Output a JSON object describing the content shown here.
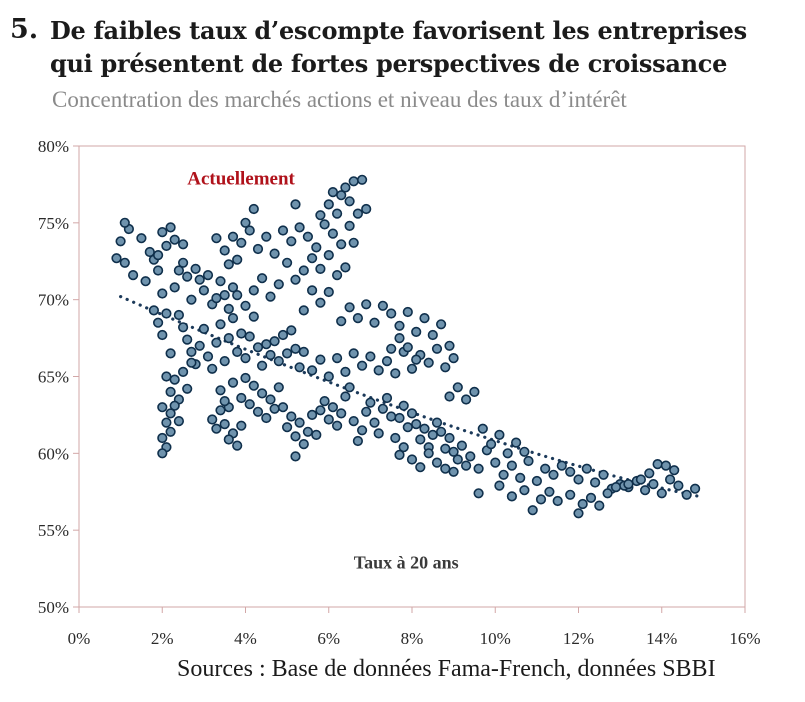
{
  "header": {
    "number": "5.",
    "title": "De faibles taux d’escompte favorisent les entreprises qui présentent de fortes perspectives de croissance",
    "subtitle": "Concentration des marchés actions et niveau des taux d’intérêt"
  },
  "footer": {
    "sources": "Sources : Base de données Fama-French, données SBBI"
  },
  "chart_data": {
    "type": "scatter",
    "title": "De faibles taux d’escompte favorisent les entreprises qui présentent de fortes perspectives de croissance",
    "subtitle": "Concentration des marchés actions et niveau des taux d’intérêt",
    "xlabel": "",
    "ylabel": "",
    "xlim": [
      0,
      16
    ],
    "ylim": [
      50,
      80
    ],
    "x_ticks": [
      "0%",
      "2%",
      "4%",
      "6%",
      "8%",
      "10%",
      "12%",
      "14%",
      "16%"
    ],
    "y_ticks": [
      "50%",
      "55%",
      "60%",
      "65%",
      "70%",
      "75%",
      "80%"
    ],
    "grid": false,
    "annotations": [
      {
        "text": "Actuellement",
        "color": "#b0121b",
        "x": 2.6,
        "y": 77.5
      },
      {
        "text": "Taux à 20 ans",
        "color": "#3a3a3a",
        "x": 6.6,
        "y": 52.5
      }
    ],
    "colors": {
      "marker_fill": "#6f93ad",
      "marker_edge": "#0f2f4b",
      "trend": "#1c3a5a",
      "frame": "#d2a7a7"
    },
    "trendline": {
      "x": [
        1.0,
        14.9
      ],
      "y": [
        70.2,
        57.2
      ],
      "style": "dotted"
    },
    "series": [
      {
        "name": "",
        "points": [
          [
            0.9,
            72.7
          ],
          [
            1.1,
            72.4
          ],
          [
            1.0,
            73.8
          ],
          [
            1.2,
            74.6
          ],
          [
            1.1,
            75.0
          ],
          [
            1.3,
            71.6
          ],
          [
            1.5,
            74.0
          ],
          [
            1.6,
            71.2
          ],
          [
            1.7,
            73.1
          ],
          [
            1.8,
            72.6
          ],
          [
            1.9,
            71.9
          ],
          [
            2.0,
            74.4
          ],
          [
            1.9,
            72.9
          ],
          [
            2.1,
            73.5
          ],
          [
            2.2,
            74.7
          ],
          [
            2.3,
            73.9
          ],
          [
            2.5,
            73.6
          ],
          [
            2.0,
            70.4
          ],
          [
            2.1,
            69.1
          ],
          [
            1.8,
            69.3
          ],
          [
            1.9,
            68.5
          ],
          [
            2.0,
            67.7
          ],
          [
            2.2,
            66.5
          ],
          [
            2.3,
            70.8
          ],
          [
            2.4,
            71.9
          ],
          [
            2.5,
            72.4
          ],
          [
            2.6,
            71.5
          ],
          [
            2.7,
            70.0
          ],
          [
            2.8,
            72.0
          ],
          [
            2.9,
            71.3
          ],
          [
            3.0,
            70.6
          ],
          [
            3.1,
            71.6
          ],
          [
            3.2,
            69.7
          ],
          [
            3.3,
            70.1
          ],
          [
            3.4,
            71.2
          ],
          [
            3.5,
            70.3
          ],
          [
            3.6,
            69.4
          ],
          [
            3.7,
            70.8
          ],
          [
            2.4,
            69.0
          ],
          [
            2.5,
            68.2
          ],
          [
            2.6,
            67.4
          ],
          [
            2.7,
            66.6
          ],
          [
            2.8,
            65.8
          ],
          [
            2.9,
            67.0
          ],
          [
            3.0,
            68.1
          ],
          [
            3.1,
            66.3
          ],
          [
            3.2,
            65.5
          ],
          [
            3.3,
            67.2
          ],
          [
            3.4,
            68.4
          ],
          [
            3.5,
            66.0
          ],
          [
            3.6,
            67.5
          ],
          [
            3.7,
            68.8
          ],
          [
            3.8,
            66.6
          ],
          [
            3.9,
            67.8
          ],
          [
            4.0,
            66.2
          ],
          [
            4.1,
            67.6
          ],
          [
            4.2,
            68.9
          ],
          [
            4.3,
            66.9
          ],
          [
            4.4,
            65.7
          ],
          [
            4.5,
            67.1
          ],
          [
            4.6,
            66.4
          ],
          [
            4.7,
            67.3
          ],
          [
            4.8,
            66.0
          ],
          [
            4.9,
            67.7
          ],
          [
            5.0,
            66.5
          ],
          [
            5.1,
            68.0
          ],
          [
            5.2,
            66.8
          ],
          [
            5.3,
            65.6
          ],
          [
            2.1,
            65.0
          ],
          [
            2.2,
            64.0
          ],
          [
            2.0,
            63.0
          ],
          [
            2.1,
            62.0
          ],
          [
            2.0,
            61.0
          ],
          [
            2.1,
            60.4
          ],
          [
            2.2,
            62.6
          ],
          [
            2.3,
            64.8
          ],
          [
            2.4,
            63.5
          ],
          [
            2.5,
            65.3
          ],
          [
            2.6,
            64.2
          ],
          [
            2.7,
            65.9
          ],
          [
            2.0,
            60.0
          ],
          [
            2.2,
            61.4
          ],
          [
            2.3,
            63.1
          ],
          [
            2.4,
            62.1
          ],
          [
            3.2,
            62.2
          ],
          [
            3.3,
            61.6
          ],
          [
            3.4,
            62.8
          ],
          [
            3.5,
            61.9
          ],
          [
            3.6,
            63.0
          ],
          [
            3.7,
            61.3
          ],
          [
            3.8,
            60.5
          ],
          [
            3.6,
            60.9
          ],
          [
            3.9,
            61.8
          ],
          [
            3.4,
            64.1
          ],
          [
            3.5,
            63.4
          ],
          [
            3.7,
            64.6
          ],
          [
            3.9,
            63.6
          ],
          [
            4.0,
            64.9
          ],
          [
            4.1,
            63.2
          ],
          [
            4.2,
            64.4
          ],
          [
            4.3,
            62.7
          ],
          [
            4.4,
            63.9
          ],
          [
            4.5,
            62.3
          ],
          [
            4.6,
            63.5
          ],
          [
            4.7,
            62.9
          ],
          [
            4.8,
            64.3
          ],
          [
            4.9,
            63.0
          ],
          [
            5.0,
            61.7
          ],
          [
            5.1,
            62.4
          ],
          [
            5.2,
            61.1
          ],
          [
            5.3,
            62.0
          ],
          [
            5.2,
            59.8
          ],
          [
            5.4,
            60.6
          ],
          [
            5.5,
            61.4
          ],
          [
            5.6,
            62.5
          ],
          [
            5.7,
            61.2
          ],
          [
            5.8,
            62.8
          ],
          [
            5.9,
            63.4
          ],
          [
            6.0,
            62.2
          ],
          [
            6.1,
            63.0
          ],
          [
            6.2,
            61.8
          ],
          [
            6.3,
            62.6
          ],
          [
            6.4,
            63.7
          ],
          [
            6.5,
            64.3
          ],
          [
            6.6,
            62.1
          ],
          [
            6.7,
            60.8
          ],
          [
            6.8,
            61.5
          ],
          [
            6.9,
            62.7
          ],
          [
            7.0,
            63.3
          ],
          [
            7.1,
            62.0
          ],
          [
            7.2,
            61.3
          ],
          [
            7.3,
            62.9
          ],
          [
            7.4,
            63.6
          ],
          [
            7.5,
            62.4
          ],
          [
            7.6,
            61.0
          ],
          [
            7.7,
            62.3
          ],
          [
            7.8,
            63.1
          ],
          [
            7.9,
            61.7
          ],
          [
            8.0,
            62.6
          ],
          [
            8.1,
            61.9
          ],
          [
            8.2,
            60.9
          ],
          [
            8.3,
            61.6
          ],
          [
            8.4,
            60.4
          ],
          [
            8.5,
            61.2
          ],
          [
            8.6,
            62.0
          ],
          [
            8.7,
            61.4
          ],
          [
            8.8,
            60.3
          ],
          [
            8.9,
            61.0
          ],
          [
            9.0,
            60.1
          ],
          [
            9.1,
            59.6
          ],
          [
            9.2,
            60.5
          ],
          [
            9.3,
            59.2
          ],
          [
            7.7,
            59.9
          ],
          [
            7.8,
            60.4
          ],
          [
            8.0,
            59.6
          ],
          [
            8.2,
            59.1
          ],
          [
            8.4,
            60.0
          ],
          [
            8.6,
            59.4
          ],
          [
            8.8,
            59.0
          ],
          [
            9.0,
            58.8
          ],
          [
            9.4,
            59.8
          ],
          [
            9.6,
            59.0
          ],
          [
            9.8,
            60.2
          ],
          [
            10.0,
            59.4
          ],
          [
            10.2,
            58.6
          ],
          [
            10.4,
            59.2
          ],
          [
            10.6,
            58.4
          ],
          [
            10.8,
            59.5
          ],
          [
            11.0,
            58.2
          ],
          [
            11.2,
            59.0
          ],
          [
            11.4,
            58.6
          ],
          [
            11.6,
            59.2
          ],
          [
            11.8,
            58.8
          ],
          [
            12.0,
            58.3
          ],
          [
            12.2,
            59.0
          ],
          [
            12.4,
            58.1
          ],
          [
            12.6,
            58.6
          ],
          [
            12.8,
            57.7
          ],
          [
            13.0,
            58.0
          ],
          [
            13.2,
            57.8
          ],
          [
            13.4,
            58.2
          ],
          [
            13.6,
            57.6
          ],
          [
            13.8,
            58.0
          ],
          [
            14.0,
            57.4
          ],
          [
            14.2,
            58.3
          ],
          [
            14.4,
            57.9
          ],
          [
            14.6,
            57.3
          ],
          [
            14.8,
            57.7
          ],
          [
            9.6,
            57.4
          ],
          [
            10.1,
            57.9
          ],
          [
            10.4,
            57.2
          ],
          [
            10.7,
            57.6
          ],
          [
            10.9,
            56.3
          ],
          [
            11.1,
            57.0
          ],
          [
            11.3,
            57.5
          ],
          [
            11.5,
            56.9
          ],
          [
            11.8,
            57.3
          ],
          [
            12.0,
            56.1
          ],
          [
            12.1,
            56.7
          ],
          [
            12.3,
            57.1
          ],
          [
            12.5,
            56.6
          ],
          [
            12.7,
            57.4
          ],
          [
            12.9,
            57.8
          ],
          [
            13.1,
            57.9
          ],
          [
            13.9,
            59.3
          ],
          [
            14.1,
            59.2
          ],
          [
            14.3,
            58.9
          ],
          [
            13.7,
            58.7
          ],
          [
            13.5,
            58.3
          ],
          [
            13.2,
            58.0
          ],
          [
            4.2,
            75.9
          ],
          [
            4.0,
            75.0
          ],
          [
            3.9,
            73.7
          ],
          [
            3.7,
            74.1
          ],
          [
            3.5,
            73.2
          ],
          [
            3.3,
            74.0
          ],
          [
            3.6,
            72.3
          ],
          [
            3.8,
            72.6
          ],
          [
            4.1,
            74.5
          ],
          [
            4.3,
            73.3
          ],
          [
            4.5,
            74.1
          ],
          [
            4.7,
            73.0
          ],
          [
            4.9,
            74.5
          ],
          [
            5.1,
            73.8
          ],
          [
            5.3,
            74.7
          ],
          [
            5.5,
            74.1
          ],
          [
            5.7,
            73.4
          ],
          [
            5.9,
            74.9
          ],
          [
            5.2,
            76.2
          ],
          [
            5.8,
            75.5
          ],
          [
            6.0,
            76.2
          ],
          [
            6.1,
            77.0
          ],
          [
            6.2,
            75.6
          ],
          [
            6.3,
            76.8
          ],
          [
            6.4,
            77.3
          ],
          [
            6.5,
            76.4
          ],
          [
            6.6,
            77.7
          ],
          [
            6.7,
            75.6
          ],
          [
            6.8,
            77.8
          ],
          [
            6.9,
            75.9
          ],
          [
            6.5,
            74.8
          ],
          [
            6.3,
            73.6
          ],
          [
            6.1,
            74.3
          ],
          [
            6.0,
            72.9
          ],
          [
            5.8,
            72.0
          ],
          [
            5.6,
            72.7
          ],
          [
            5.4,
            71.9
          ],
          [
            5.2,
            71.3
          ],
          [
            5.0,
            72.4
          ],
          [
            4.8,
            71.0
          ],
          [
            4.6,
            70.2
          ],
          [
            4.4,
            71.4
          ],
          [
            4.2,
            70.6
          ],
          [
            4.0,
            69.6
          ],
          [
            3.8,
            70.3
          ],
          [
            6.6,
            73.7
          ],
          [
            6.4,
            72.1
          ],
          [
            6.2,
            71.6
          ],
          [
            6.0,
            70.5
          ],
          [
            5.8,
            69.8
          ],
          [
            5.6,
            70.6
          ],
          [
            5.4,
            69.3
          ],
          [
            6.3,
            68.6
          ],
          [
            6.5,
            69.5
          ],
          [
            6.7,
            68.8
          ],
          [
            6.9,
            69.7
          ],
          [
            7.1,
            68.5
          ],
          [
            7.3,
            69.6
          ],
          [
            7.5,
            69.1
          ],
          [
            7.7,
            68.3
          ],
          [
            7.9,
            69.2
          ],
          [
            8.1,
            67.9
          ],
          [
            8.3,
            68.8
          ],
          [
            8.5,
            67.7
          ],
          [
            8.7,
            68.4
          ],
          [
            8.9,
            67.0
          ],
          [
            9.0,
            66.2
          ],
          [
            8.8,
            65.6
          ],
          [
            8.6,
            66.8
          ],
          [
            8.4,
            65.9
          ],
          [
            8.2,
            66.4
          ],
          [
            8.0,
            65.5
          ],
          [
            7.8,
            66.6
          ],
          [
            7.6,
            65.2
          ],
          [
            7.4,
            66.0
          ],
          [
            7.2,
            65.4
          ],
          [
            7.0,
            66.3
          ],
          [
            6.8,
            65.7
          ],
          [
            6.6,
            66.5
          ],
          [
            6.4,
            65.3
          ],
          [
            6.2,
            66.2
          ],
          [
            6.0,
            65.0
          ],
          [
            5.8,
            66.1
          ],
          [
            5.6,
            65.4
          ],
          [
            5.4,
            66.6
          ],
          [
            8.9,
            63.7
          ],
          [
            9.1,
            64.3
          ],
          [
            9.3,
            63.5
          ],
          [
            9.5,
            64.0
          ],
          [
            9.7,
            61.6
          ],
          [
            9.9,
            60.6
          ],
          [
            10.1,
            61.2
          ],
          [
            10.3,
            60.0
          ],
          [
            10.5,
            60.7
          ],
          [
            10.7,
            60.1
          ],
          [
            7.5,
            66.8
          ],
          [
            7.7,
            67.5
          ],
          [
            7.9,
            66.9
          ],
          [
            8.1,
            66.1
          ]
        ]
      }
    ]
  }
}
